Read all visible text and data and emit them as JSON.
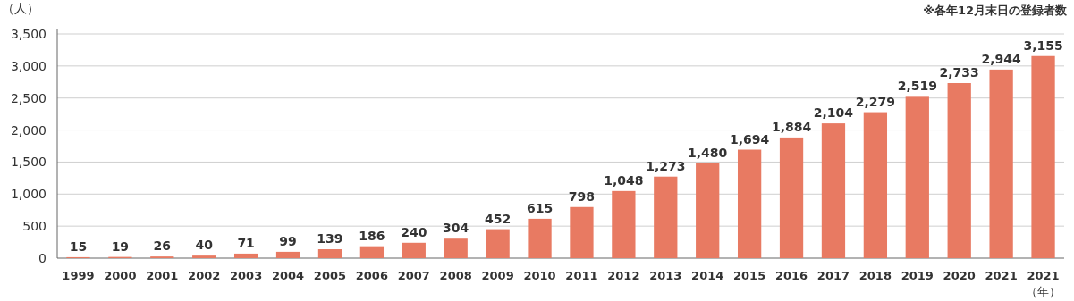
{
  "chart_data": {
    "type": "bar",
    "ylabel": "（人）",
    "xlabel": "（年）",
    "annotations": [
      "※各年12月末日の登録者数"
    ],
    "categories": [
      "1999",
      "2000",
      "2001",
      "2002",
      "2003",
      "2004",
      "2005",
      "2006",
      "2007",
      "2008",
      "2009",
      "2010",
      "2011",
      "2012",
      "2013",
      "2014",
      "2015",
      "2016",
      "2017",
      "2018",
      "2019",
      "2020",
      "2021",
      "2021"
    ],
    "values": [
      15,
      19,
      26,
      40,
      71,
      99,
      139,
      186,
      240,
      304,
      452,
      615,
      798,
      1048,
      1273,
      1480,
      1694,
      1884,
      2104,
      2279,
      2519,
      2733,
      2944,
      3155
    ],
    "color": "#e87a62",
    "ylim": [
      0,
      3500
    ],
    "yticks": [
      0,
      500,
      {
        "value": 1000,
        "label": "1,000"
      },
      {
        "value": 1500,
        "label": "1,500"
      },
      {
        "value": 2000,
        "label": "2,000"
      },
      {
        "value": 2500,
        "label": "2,500"
      },
      {
        "value": 3000,
        "label": "3,000"
      },
      {
        "value": 3500,
        "label": "3,500"
      }
    ],
    "value_labels": [
      "15",
      "19",
      "26",
      "40",
      "71",
      "99",
      "139",
      "186",
      "240",
      "304",
      "452",
      "615",
      "798",
      "1,048",
      "1,273",
      "1,480",
      "1,694",
      "1,884",
      "2,104",
      "2,279",
      "2,519",
      "2,733",
      "2,944",
      "3,155"
    ],
    "grid": "y"
  }
}
